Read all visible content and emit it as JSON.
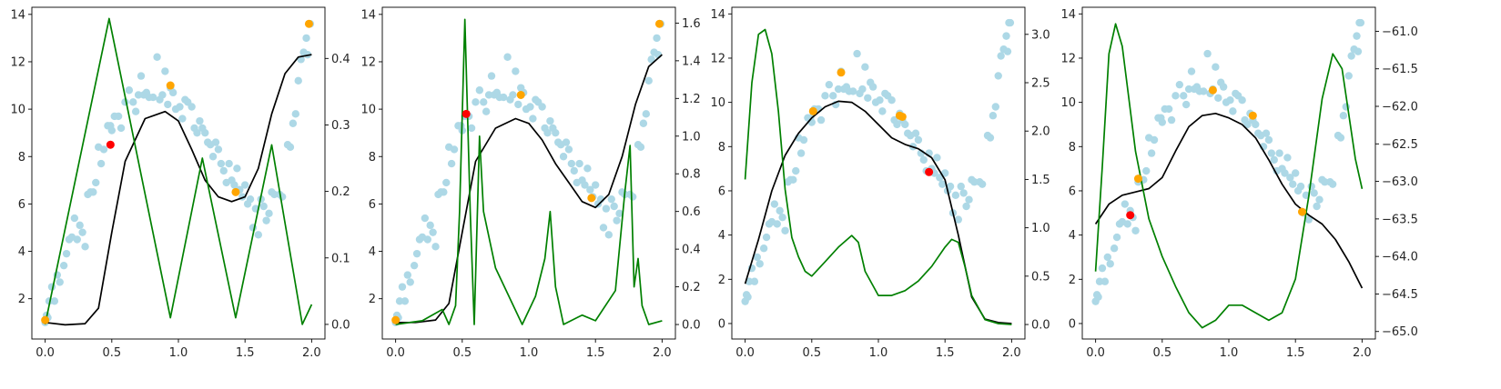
{
  "colors": {
    "scatter": "#add8e6",
    "highlight_orange": "#ffa500",
    "highlight_red": "#ff0000",
    "mean_line": "#000000",
    "secondary_line": "#008000"
  },
  "chart_data": [
    {
      "type": "scatter+line",
      "left_axis": {
        "ylim": [
          0.3,
          14.3
        ],
        "ticks": [
          2,
          4,
          6,
          8,
          10,
          12,
          14
        ],
        "tick_labels": [
          "2",
          "4",
          "6",
          "8",
          "10",
          "12",
          "14"
        ]
      },
      "x_axis": {
        "xlim": [
          -0.1,
          2.1
        ],
        "ticks": [
          0.0,
          0.5,
          1.0,
          1.5,
          2.0
        ],
        "tick_labels": [
          "0.0",
          "0.5",
          "1.0",
          "1.5",
          "2.0"
        ]
      },
      "right_axis": {
        "ylim": [
          -0.022,
          0.477
        ],
        "ticks": [
          0.0,
          0.1,
          0.2,
          0.3,
          0.4
        ],
        "tick_labels": [
          "0.0",
          "0.1",
          "0.2",
          "0.3",
          "0.4"
        ]
      },
      "orange_points": [
        [
          0.0,
          1.1
        ],
        [
          0.94,
          11.0
        ],
        [
          1.43,
          6.5
        ],
        [
          1.98,
          13.6
        ]
      ],
      "red_points": [
        [
          0.49,
          8.5
        ]
      ],
      "black_line": {
        "x": [
          0.0,
          0.15,
          0.3,
          0.4,
          0.5,
          0.6,
          0.75,
          0.9,
          1.0,
          1.1,
          1.2,
          1.3,
          1.4,
          1.5,
          1.6,
          1.7,
          1.8,
          1.9,
          2.0
        ],
        "y": [
          1.0,
          0.9,
          0.95,
          1.6,
          4.8,
          7.8,
          9.6,
          9.9,
          9.5,
          8.3,
          7.0,
          6.3,
          6.1,
          6.3,
          7.5,
          9.8,
          11.5,
          12.2,
          12.3
        ]
      },
      "green_line": {
        "x": [
          0.0,
          0.48,
          0.94,
          1.18,
          1.43,
          1.7,
          1.93,
          2.0
        ],
        "y": [
          0.0,
          0.46,
          0.01,
          0.25,
          0.01,
          0.27,
          0.0,
          0.03
        ]
      }
    },
    {
      "type": "scatter+line",
      "left_axis": {
        "ylim": [
          0.3,
          14.3
        ],
        "ticks": [
          2,
          4,
          6,
          8,
          10,
          12,
          14
        ],
        "tick_labels": [
          "2",
          "4",
          "6",
          "8",
          "10",
          "12",
          "14"
        ]
      },
      "x_axis": {
        "xlim": [
          -0.1,
          2.1
        ],
        "ticks": [
          0.0,
          0.5,
          1.0,
          1.5,
          2.0
        ],
        "tick_labels": [
          "0.0",
          "0.5",
          "1.0",
          "1.5",
          "2.0"
        ]
      },
      "right_axis": {
        "ylim": [
          -0.077,
          1.684
        ],
        "ticks": [
          0.0,
          0.2,
          0.4,
          0.6,
          0.8,
          1.0,
          1.2,
          1.4,
          1.6
        ],
        "tick_labels": [
          "0.0",
          "0.2",
          "0.4",
          "0.6",
          "0.8",
          "1.0",
          "1.2",
          "1.4",
          "1.6"
        ]
      },
      "orange_points": [
        [
          0.0,
          1.1
        ],
        [
          0.94,
          10.6
        ],
        [
          1.47,
          6.25
        ],
        [
          1.98,
          13.6
        ]
      ],
      "red_points": [
        [
          0.53,
          9.8
        ]
      ],
      "black_line": {
        "x": [
          0.0,
          0.15,
          0.3,
          0.4,
          0.5,
          0.6,
          0.75,
          0.9,
          1.0,
          1.1,
          1.2,
          1.3,
          1.4,
          1.5,
          1.6,
          1.7,
          1.8,
          1.9,
          2.0
        ],
        "y": [
          1.0,
          1.0,
          1.1,
          1.8,
          4.8,
          7.8,
          9.2,
          9.6,
          9.4,
          8.7,
          7.7,
          6.9,
          6.1,
          5.85,
          6.4,
          8.0,
          10.2,
          11.8,
          12.3
        ]
      },
      "green_line": {
        "x": [
          0.0,
          0.2,
          0.35,
          0.4,
          0.45,
          0.48,
          0.52,
          0.56,
          0.59,
          0.63,
          0.66,
          0.75,
          0.95,
          1.05,
          1.12,
          1.16,
          1.2,
          1.26,
          1.4,
          1.5,
          1.65,
          1.72,
          1.76,
          1.79,
          1.82,
          1.85,
          1.9,
          2.0
        ],
        "y": [
          0.0,
          0.02,
          0.08,
          0.0,
          0.1,
          0.6,
          1.62,
          0.6,
          0.0,
          1.0,
          0.6,
          0.3,
          0.0,
          0.15,
          0.35,
          0.6,
          0.2,
          0.0,
          0.05,
          0.02,
          0.18,
          0.7,
          0.95,
          0.2,
          0.35,
          0.1,
          0.0,
          0.02
        ]
      }
    },
    {
      "type": "scatter+line",
      "left_axis": {
        "ylim": [
          -0.7,
          14.3
        ],
        "ticks": [
          0,
          2,
          4,
          6,
          8,
          10,
          12,
          14
        ],
        "tick_labels": [
          "0",
          "2",
          "4",
          "6",
          "8",
          "10",
          "12",
          "14"
        ]
      },
      "x_axis": {
        "xlim": [
          -0.1,
          2.1
        ],
        "ticks": [
          0.0,
          0.5,
          1.0,
          1.5,
          2.0
        ],
        "tick_labels": [
          "0.0",
          "0.5",
          "1.0",
          "1.5",
          "2.0"
        ]
      },
      "right_axis": {
        "ylim": [
          -0.15,
          3.28
        ],
        "ticks": [
          0.0,
          0.5,
          1.0,
          1.5,
          2.0,
          2.5,
          3.0
        ],
        "tick_labels": [
          "0.0",
          "0.5",
          "1.0",
          "1.5",
          "2.0",
          "2.5",
          "3.0"
        ]
      },
      "orange_points": [
        [
          0.51,
          9.6
        ],
        [
          0.72,
          11.35
        ],
        [
          1.16,
          9.4
        ],
        [
          1.18,
          9.35
        ]
      ],
      "red_points": [
        [
          1.38,
          6.85
        ]
      ],
      "black_line": {
        "x": [
          0.0,
          0.1,
          0.2,
          0.3,
          0.4,
          0.5,
          0.6,
          0.7,
          0.8,
          0.9,
          1.0,
          1.1,
          1.2,
          1.3,
          1.4,
          1.5,
          1.6,
          1.7,
          1.8,
          1.9,
          2.0
        ],
        "y": [
          1.8,
          3.8,
          6.0,
          7.6,
          8.6,
          9.3,
          9.8,
          10.05,
          10.0,
          9.6,
          9.0,
          8.4,
          8.1,
          7.9,
          7.5,
          6.5,
          4.0,
          1.2,
          0.2,
          0.05,
          0.0
        ]
      },
      "green_line": {
        "x": [
          0.0,
          0.05,
          0.1,
          0.15,
          0.2,
          0.25,
          0.3,
          0.35,
          0.4,
          0.45,
          0.5,
          0.6,
          0.7,
          0.8,
          0.85,
          0.9,
          1.0,
          1.1,
          1.2,
          1.3,
          1.4,
          1.5,
          1.55,
          1.6,
          1.65,
          1.7,
          1.8,
          1.9,
          2.0
        ],
        "y": [
          1.5,
          2.5,
          3.0,
          3.05,
          2.8,
          2.2,
          1.4,
          0.9,
          0.7,
          0.55,
          0.5,
          0.65,
          0.8,
          0.92,
          0.85,
          0.55,
          0.3,
          0.3,
          0.35,
          0.45,
          0.6,
          0.8,
          0.88,
          0.85,
          0.6,
          0.3,
          0.05,
          0.01,
          0.0
        ]
      }
    },
    {
      "type": "scatter+line",
      "left_axis": {
        "ylim": [
          -0.7,
          14.3
        ],
        "ticks": [
          0,
          2,
          4,
          6,
          8,
          10,
          12,
          14
        ],
        "tick_labels": [
          "0",
          "2",
          "4",
          "6",
          "8",
          "10",
          "12",
          "14"
        ]
      },
      "x_axis": {
        "xlim": [
          -0.1,
          2.1
        ],
        "ticks": [
          0.0,
          0.5,
          1.0,
          1.5,
          2.0
        ],
        "tick_labels": [
          "0.0",
          "0.5",
          "1.0",
          "1.5",
          "2.0"
        ]
      },
      "right_axis": {
        "ylim": [
          -65.1,
          -60.68
        ],
        "ticks": [
          -65.0,
          -64.5,
          -64.0,
          -63.5,
          -63.0,
          -62.5,
          -62.0,
          -61.5,
          -61.0
        ],
        "tick_labels": [
          "−65.0",
          "−64.5",
          "−64.0",
          "−63.5",
          "−63.0",
          "−62.5",
          "−62.0",
          "−61.5",
          "−61.0"
        ]
      },
      "orange_points": [
        [
          0.32,
          6.55
        ],
        [
          0.88,
          10.55
        ],
        [
          1.18,
          9.4
        ],
        [
          1.55,
          5.05
        ]
      ],
      "red_points": [
        [
          0.26,
          4.9
        ]
      ],
      "black_line": {
        "x": [
          0.0,
          0.1,
          0.2,
          0.3,
          0.4,
          0.5,
          0.6,
          0.7,
          0.8,
          0.9,
          1.0,
          1.1,
          1.2,
          1.3,
          1.4,
          1.5,
          1.6,
          1.7,
          1.8,
          1.9,
          2.0
        ],
        "y": [
          4.5,
          5.4,
          5.8,
          5.95,
          6.1,
          6.6,
          7.8,
          8.9,
          9.4,
          9.5,
          9.3,
          9.0,
          8.4,
          7.4,
          6.3,
          5.4,
          4.9,
          4.5,
          3.8,
          2.8,
          1.6
        ]
      },
      "green_line": {
        "x": [
          0.0,
          0.05,
          0.1,
          0.15,
          0.2,
          0.25,
          0.3,
          0.4,
          0.5,
          0.6,
          0.7,
          0.8,
          0.9,
          1.0,
          1.1,
          1.2,
          1.3,
          1.4,
          1.5,
          1.6,
          1.7,
          1.78,
          1.85,
          1.9,
          1.95,
          2.0
        ],
        "y": [
          -64.2,
          -62.8,
          -61.3,
          -60.9,
          -61.2,
          -61.9,
          -62.6,
          -63.5,
          -64.0,
          -64.4,
          -64.75,
          -64.95,
          -64.85,
          -64.65,
          -64.65,
          -64.75,
          -64.85,
          -64.75,
          -64.3,
          -63.2,
          -61.9,
          -61.3,
          -61.5,
          -62.1,
          -62.7,
          -63.1
        ]
      }
    }
  ],
  "scatter_x": [
    0.0,
    0.01,
    0.02,
    0.03,
    0.05,
    0.07,
    0.09,
    0.11,
    0.14,
    0.16,
    0.18,
    0.2,
    0.22,
    0.24,
    0.26,
    0.28,
    0.3,
    0.32,
    0.34,
    0.36,
    0.38,
    0.4,
    0.42,
    0.44,
    0.47,
    0.49,
    0.5,
    0.52,
    0.55,
    0.57,
    0.6,
    0.63,
    0.66,
    0.68,
    0.7,
    0.72,
    0.74,
    0.76,
    0.78,
    0.81,
    0.84,
    0.86,
    0.88,
    0.9,
    0.92,
    0.94,
    0.96,
    0.98,
    1.01,
    1.03,
    1.05,
    1.07,
    1.1,
    1.12,
    1.14,
    1.16,
    1.18,
    1.2,
    1.22,
    1.24,
    1.26,
    1.28,
    1.3,
    1.32,
    1.34,
    1.36,
    1.38,
    1.4,
    1.42,
    1.44,
    1.46,
    1.48,
    1.5,
    1.52,
    1.54,
    1.56,
    1.58,
    1.6,
    1.62,
    1.64,
    1.66,
    1.68,
    1.7,
    1.72,
    1.76,
    1.78,
    1.82,
    1.84,
    1.86,
    1.88,
    1.9,
    1.92,
    1.94,
    1.96,
    1.97,
    1.98,
    1.99
  ],
  "scatter_y": [
    1.0,
    1.3,
    1.2,
    1.9,
    2.5,
    1.9,
    3.0,
    2.7,
    3.4,
    3.9,
    4.5,
    4.6,
    5.4,
    4.5,
    5.1,
    4.8,
    4.2,
    6.4,
    6.5,
    6.5,
    6.9,
    8.4,
    7.7,
    8.3,
    9.3,
    9.3,
    9.1,
    9.7,
    9.7,
    9.2,
    10.3,
    10.8,
    10.3,
    9.9,
    10.6,
    11.4,
    10.6,
    10.7,
    10.5,
    10.5,
    12.2,
    10.4,
    10.6,
    11.6,
    10.2,
    10.9,
    10.7,
    10.0,
    10.1,
    9.6,
    10.4,
    10.3,
    10.1,
    9.2,
    9.0,
    9.5,
    9.2,
    9.0,
    8.6,
    8.5,
    8.0,
    8.6,
    8.3,
    7.7,
    7.4,
    6.9,
    7.7,
    7.0,
    6.8,
    7.5,
    6.6,
    6.3,
    6.8,
    6.0,
    6.2,
    5.0,
    5.8,
    4.7,
    6.2,
    5.9,
    5.3,
    5.6,
    6.5,
    6.4,
    6.4,
    6.3,
    8.5,
    8.4,
    9.4,
    9.8,
    11.2,
    12.1,
    12.4,
    13.0,
    12.3,
    13.6,
    13.6
  ],
  "panels": [
    {
      "box": [
        0,
        0,
        0,
        0
      ]
    },
    {
      "box": [
        0,
        0,
        0,
        0
      ]
    },
    {
      "box": [
        0,
        0,
        0,
        0
      ]
    },
    {
      "box": [
        0,
        0,
        0,
        0
      ]
    }
  ]
}
